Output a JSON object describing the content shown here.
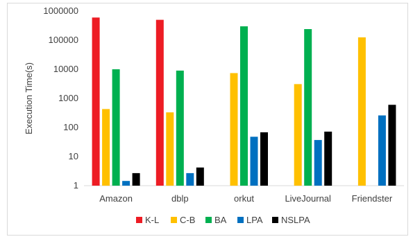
{
  "chart_data": {
    "type": "bar",
    "title": "",
    "xlabel": "",
    "ylabel": "Execution Time(s)",
    "yscale": "log",
    "ylim": [
      1,
      1000000
    ],
    "y_ticks": [
      "1",
      "10",
      "100",
      "1000",
      "10000",
      "100000",
      "1000000"
    ],
    "grid": false,
    "legend_position": "bottom",
    "categories": [
      "Amazon",
      "dblp",
      "orkut",
      "LiveJournal",
      "Friendster"
    ],
    "series": [
      {
        "name": "K-L",
        "color": "#ed1c24",
        "values": [
          600000,
          500000,
          null,
          null,
          null
        ]
      },
      {
        "name": "C-B",
        "color": "#ffc000",
        "values": [
          430,
          330,
          7400,
          3100,
          125000
        ]
      },
      {
        "name": "BA",
        "color": "#00b050",
        "values": [
          10000,
          9000,
          300000,
          240000,
          null
        ]
      },
      {
        "name": "LPA",
        "color": "#0070c0",
        "values": [
          1.45,
          2.7,
          48,
          37,
          260
        ]
      },
      {
        "name": "NSLPA",
        "color": "#000000",
        "values": [
          2.7,
          4.2,
          68,
          72,
          600
        ]
      }
    ]
  }
}
